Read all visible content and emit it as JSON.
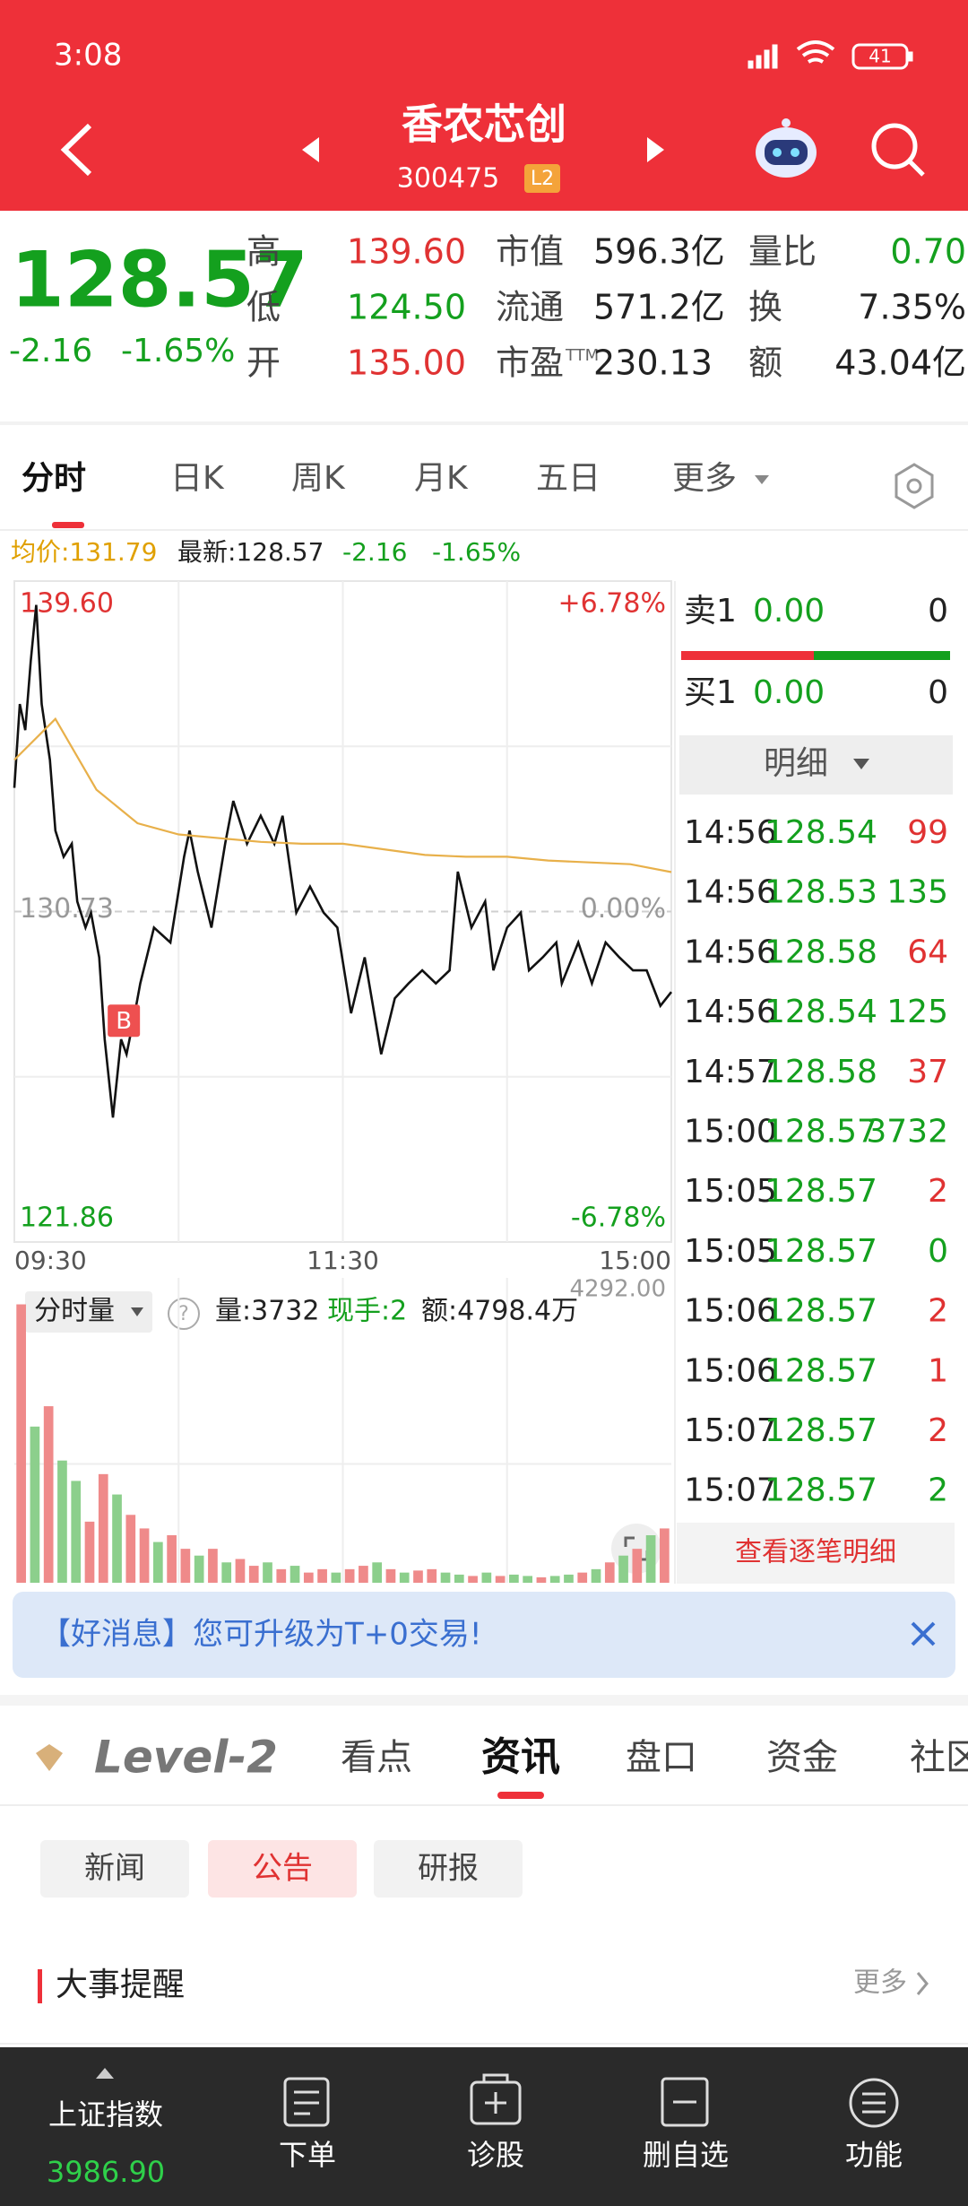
{
  "status_bar": {
    "time": "3:08",
    "battery": "41"
  },
  "header": {
    "title": "香农芯创",
    "code": "300475",
    "badge": "L2"
  },
  "quote": {
    "price": "128.57",
    "change": "-2.16",
    "change_pct": "-1.65%",
    "color": "#14a01e",
    "columns": [
      [
        {
          "label": "高",
          "value": "139.60",
          "color": "#e03232"
        },
        {
          "label": "低",
          "value": "124.50",
          "color": "#14a01e"
        },
        {
          "label": "开",
          "value": "135.00",
          "color": "#e03232"
        }
      ],
      [
        {
          "label": "市值",
          "value": "596.3亿"
        },
        {
          "label": "流通",
          "value": "571.2亿"
        },
        {
          "label": "市盈",
          "sup": "TTM",
          "value": "230.13"
        }
      ],
      [
        {
          "label": "量比",
          "value": "0.70",
          "color": "#14a01e"
        },
        {
          "label": "换",
          "value": "7.35%"
        },
        {
          "label": "额",
          "value": "43.04亿"
        }
      ]
    ]
  },
  "tabs": [
    "分时",
    "日K",
    "周K",
    "月K",
    "五日",
    "更多"
  ],
  "info_line": [
    {
      "text": "均价:131.79",
      "color": "#e0a000"
    },
    {
      "text": "最新:128.57",
      "color": "#222222"
    },
    {
      "text": "-2.16",
      "color": "#14a01e"
    },
    {
      "text": "-1.65%",
      "color": "#14a01e"
    }
  ],
  "chart_data": [
    {
      "type": "line",
      "xlim": [
        0,
        240
      ],
      "ylim": [
        121.86,
        139.6
      ],
      "y2lim": [
        -6.78,
        6.78
      ],
      "xticks": [
        {
          "value": 0,
          "label": "09:30"
        },
        {
          "value": 120,
          "label": "11:30"
        },
        {
          "value": 240,
          "label": "15:00"
        }
      ],
      "yticks": [
        {
          "value": 139.6,
          "label": "139.60",
          "color": "#e03232"
        },
        {
          "value": 130.73,
          "label": "130.73",
          "color": "#999999"
        },
        {
          "value": 121.86,
          "label": "121.86",
          "color": "#14a01e"
        }
      ],
      "y2ticks": [
        {
          "value": 6.78,
          "label": "+6.78%",
          "color": "#e03232"
        },
        {
          "value": 0,
          "label": "0.00%",
          "color": "#999999"
        },
        {
          "value": -6.78,
          "label": "-6.78%",
          "color": "#14a01e"
        }
      ],
      "series": [
        {
          "color": "#111111",
          "x": [
            0,
            2,
            4,
            6,
            8,
            10,
            13,
            15,
            18,
            21,
            23,
            26,
            28,
            31,
            33,
            36,
            39,
            41,
            44,
            46,
            51,
            57,
            62,
            64,
            67,
            72,
            77,
            80,
            85,
            90,
            95,
            98,
            103,
            108,
            113,
            118,
            123,
            128,
            134,
            139,
            144,
            149,
            154,
            159,
            162,
            167,
            172,
            175,
            180,
            185,
            188,
            193,
            198,
            200,
            206,
            211,
            216,
            221,
            226,
            231,
            236,
            240
          ],
          "values": [
            134.05,
            136.3,
            135.6,
            137.45,
            138.96,
            136.3,
            134.8,
            132.9,
            132.2,
            132.55,
            131.0,
            130.3,
            130.7,
            129.5,
            127.3,
            125.2,
            127.3,
            126.9,
            128.0,
            128.8,
            130.3,
            129.9,
            132.2,
            132.9,
            131.8,
            130.3,
            132.55,
            133.7,
            132.55,
            133.3,
            132.55,
            133.3,
            130.7,
            131.4,
            130.7,
            130.3,
            128.0,
            129.5,
            126.9,
            128.4,
            128.8,
            129.15,
            128.8,
            129.15,
            131.8,
            130.3,
            131.0,
            129.15,
            130.3,
            130.7,
            129.15,
            129.5,
            129.9,
            128.8,
            129.9,
            128.8,
            129.9,
            129.5,
            129.15,
            129.15,
            128.2,
            128.57
          ]
        },
        {
          "color": "#e8b04a",
          "x": [
            0,
            15,
            30,
            45,
            60,
            75,
            90,
            105,
            120,
            135,
            150,
            165,
            180,
            195,
            210,
            225,
            240
          ],
          "values": [
            134.8,
            135.9,
            134.0,
            133.1,
            132.8,
            132.7,
            132.6,
            132.55,
            132.55,
            132.4,
            132.25,
            132.2,
            132.2,
            132.1,
            132.05,
            132.0,
            131.79
          ]
        }
      ],
      "annotations": [
        {
          "text": "B",
          "x": 40,
          "y": 127.75
        }
      ]
    },
    {
      "type": "bar",
      "title": "分时量",
      "stats": [
        {
          "text": "量:3732",
          "color": "#222222"
        },
        {
          "text": "现手:2",
          "color": "#14a01e"
        },
        {
          "text": "额:4798.4万",
          "color": "#222222"
        }
      ],
      "xlim": [
        0,
        240
      ],
      "ylim": [
        0,
        4292
      ],
      "yticks": [
        {
          "value": 4292,
          "label": "4292.00",
          "color": "#999999"
        }
      ],
      "x": [
        2.5,
        7.5,
        12.5,
        17.5,
        22.5,
        27.5,
        32.5,
        37.5,
        42.5,
        47.5,
        52.5,
        57.5,
        62.5,
        67.5,
        72.5,
        77.5,
        82.5,
        87.5,
        92.5,
        97.5,
        102.5,
        107.5,
        112.5,
        117.5,
        122.5,
        127.5,
        132.5,
        137.5,
        142.5,
        147.5,
        152.5,
        157.5,
        162.5,
        167.5,
        172.5,
        177.5,
        182.5,
        187.5,
        192.5,
        197.5,
        202.5,
        207.5,
        212.5,
        217.5,
        222.5,
        227.5,
        232.5,
        237.5
      ],
      "values": [
        4100,
        2300,
        2600,
        1800,
        1500,
        900,
        1600,
        1300,
        1000,
        800,
        600,
        700,
        500,
        400,
        500,
        300,
        350,
        250,
        300,
        200,
        250,
        150,
        200,
        150,
        200,
        250,
        300,
        200,
        150,
        180,
        200,
        150,
        120,
        100,
        150,
        100,
        120,
        100,
        80,
        100,
        120,
        150,
        200,
        300,
        400,
        500,
        700,
        800
      ],
      "colors": [
        "#ef8a8a",
        "#8ccf8c",
        "#ef8a8a",
        "#8ccf8c",
        "#8ccf8c",
        "#ef8a8a",
        "#ef8a8a",
        "#8ccf8c",
        "#ef8a8a",
        "#ef8a8a",
        "#8ccf8c",
        "#ef8a8a",
        "#ef8a8a",
        "#8ccf8c",
        "#ef8a8a",
        "#8ccf8c",
        "#ef8a8a",
        "#ef8a8a",
        "#8ccf8c",
        "#ef8a8a",
        "#8ccf8c",
        "#ef8a8a",
        "#ef8a8a",
        "#8ccf8c",
        "#ef8a8a",
        "#ef8a8a",
        "#8ccf8c",
        "#ef8a8a",
        "#8ccf8c",
        "#ef8a8a",
        "#ef8a8a",
        "#8ccf8c",
        "#8ccf8c",
        "#ef8a8a",
        "#8ccf8c",
        "#ef8a8a",
        "#8ccf8c",
        "#8ccf8c",
        "#ef8a8a",
        "#8ccf8c",
        "#8ccf8c",
        "#ef8a8a",
        "#8ccf8c",
        "#ef8a8a",
        "#8ccf8c",
        "#ef8a8a",
        "#8ccf8c",
        "#ef8a8a"
      ]
    }
  ],
  "order_book": [
    {
      "label": "卖1",
      "price": "0.00",
      "volume": "0"
    },
    {
      "label": "买1",
      "price": "0.00",
      "volume": "0"
    }
  ],
  "trades": {
    "title": "明细",
    "more": "查看逐笔明细",
    "price_color": "#14a01e",
    "rows": [
      {
        "time": "14:56",
        "price": "128.54",
        "volume": "99",
        "color": "#e03232"
      },
      {
        "time": "14:56",
        "price": "128.53",
        "volume": "135",
        "color": "#14a01e"
      },
      {
        "time": "14:56",
        "price": "128.58",
        "volume": "64",
        "color": "#e03232"
      },
      {
        "time": "14:56",
        "price": "128.54",
        "volume": "125",
        "color": "#14a01e"
      },
      {
        "time": "14:57",
        "price": "128.58",
        "volume": "37",
        "color": "#e03232"
      },
      {
        "time": "15:00",
        "price": "128.57",
        "volume": "3732",
        "color": "#14a01e"
      },
      {
        "time": "15:05",
        "price": "128.57",
        "volume": "2",
        "color": "#e03232"
      },
      {
        "time": "15:05",
        "price": "128.57",
        "volume": "0",
        "color": "#14a01e"
      },
      {
        "time": "15:06",
        "price": "128.57",
        "volume": "2",
        "color": "#e03232"
      },
      {
        "time": "15:06",
        "price": "128.57",
        "volume": "1",
        "color": "#e03232"
      },
      {
        "time": "15:07",
        "price": "128.57",
        "volume": "2",
        "color": "#e03232"
      },
      {
        "time": "15:07",
        "price": "128.57",
        "volume": "2",
        "color": "#14a01e"
      }
    ]
  },
  "banner": {
    "text": "【好消息】您可升级为T+0交易!"
  },
  "news_tabs": {
    "brand": "Level-2",
    "items": [
      "看点",
      "资讯",
      "盘口",
      "资金",
      "社区"
    ],
    "active": 1
  },
  "sub_tabs": {
    "items": [
      "新闻",
      "公告",
      "研报"
    ],
    "active": 1
  },
  "section": {
    "title": "大事提醒",
    "more": "更多"
  },
  "bottom_nav": {
    "index_name": "上证指数",
    "index_value": "3986.90",
    "index_color": "#2fd04a",
    "items": [
      "下单",
      "诊股",
      "删自选",
      "功能"
    ]
  }
}
